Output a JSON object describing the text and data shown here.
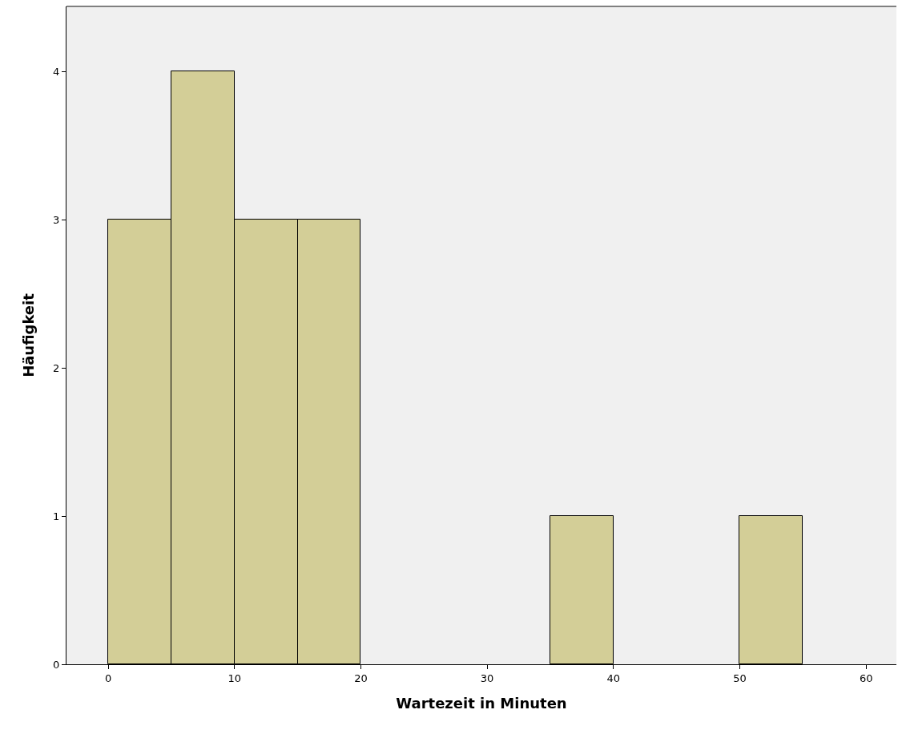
{
  "chart_data": {
    "type": "histogram",
    "xlabel": "Wartezeit in Minuten",
    "ylabel": "Häufigkeit",
    "bins": [
      0,
      5,
      10,
      15,
      20,
      25,
      30,
      35,
      40,
      45,
      50,
      55
    ],
    "values": [
      3,
      4,
      3,
      3,
      0,
      0,
      0,
      1,
      0,
      0,
      1
    ],
    "color": "#d3ce97",
    "xlim": [
      -3.3,
      62.4
    ],
    "xticks": [
      0,
      10,
      20,
      30,
      40,
      50,
      60
    ],
    "ylim": [
      0,
      4.44
    ],
    "yticks": [
      0,
      1,
      2,
      3,
      4
    ]
  }
}
